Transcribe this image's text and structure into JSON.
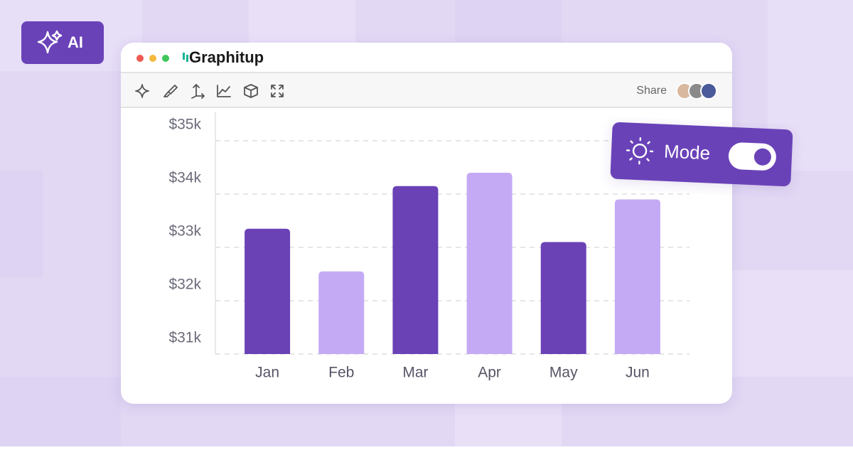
{
  "badge": {
    "label": "AI"
  },
  "window": {
    "brand": "Graphitup",
    "share": "Share"
  },
  "mode": {
    "label": "Mode"
  },
  "chart_data": {
    "type": "bar",
    "categories": [
      "Jan",
      "Feb",
      "Mar",
      "Apr",
      "May",
      "Jun"
    ],
    "values": [
      33350,
      32550,
      34150,
      34400,
      33100,
      33900
    ],
    "colors": [
      "#6a42b6",
      "#c4aaf5",
      "#6a42b6",
      "#c4aaf5",
      "#6a42b6",
      "#c4aaf5"
    ],
    "ylim": [
      31000,
      35500
    ],
    "yticks": [
      {
        "value": 31000,
        "label": "$31k"
      },
      {
        "value": 32000,
        "label": "$32k"
      },
      {
        "value": 33000,
        "label": "$33k"
      },
      {
        "value": 34000,
        "label": "$34k"
      },
      {
        "value": 35000,
        "label": "$35k"
      }
    ],
    "grid": true
  }
}
